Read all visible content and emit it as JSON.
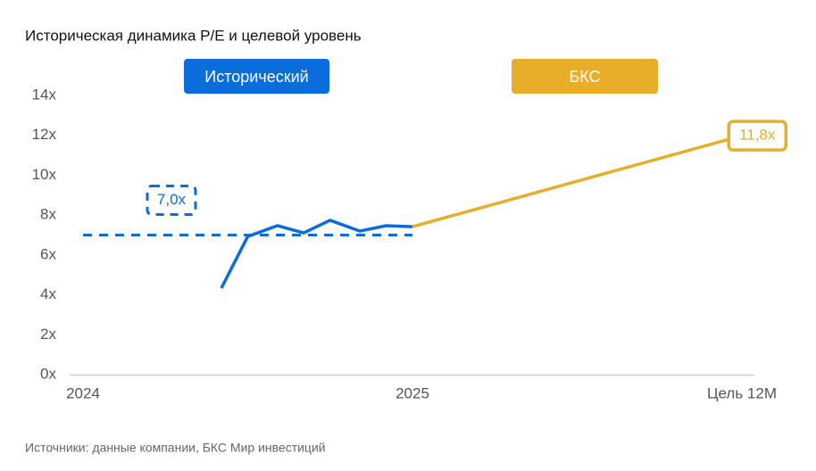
{
  "chart_data": {
    "type": "line",
    "title": "Историческая динамика P/E и целевой уровень",
    "source": "Источники: данные компании, БКС Мир инвестиций",
    "xlim": [
      2024,
      2026
    ],
    "xticks": [
      {
        "value": 2024,
        "label": "2024"
      },
      {
        "value": 2025,
        "label": "2025"
      },
      {
        "value": 2026,
        "label": "Цель 12M"
      }
    ],
    "ylim": [
      0,
      14
    ],
    "yticks": [
      {
        "value": 0,
        "label": "0x"
      },
      {
        "value": 2,
        "label": "2x"
      },
      {
        "value": 4,
        "label": "4x"
      },
      {
        "value": 6,
        "label": "6x"
      },
      {
        "value": 8,
        "label": "8x"
      },
      {
        "value": 10,
        "label": "10x"
      },
      {
        "value": 12,
        "label": "12x"
      },
      {
        "value": 14,
        "label": "14x"
      }
    ],
    "series": [
      {
        "name": "Исторический",
        "color": "#0b6cdb",
        "x": [
          2024.42,
          2024.5,
          2024.59,
          2024.67,
          2024.75,
          2024.84,
          2024.92,
          2025.0
        ],
        "values": [
          4.34,
          6.93,
          7.47,
          7.11,
          7.74,
          7.2,
          7.47,
          7.42
        ]
      },
      {
        "name": "БКС",
        "color": "#e8ae2a",
        "x": [
          2025.0,
          2025.96
        ],
        "values": [
          7.42,
          11.8
        ],
        "value_labels": [
          null,
          "11,8x"
        ]
      }
    ],
    "reference": {
      "value": 7,
      "value_label": "7,0x",
      "x": [
        2024,
        2025
      ],
      "color": "#0b6cdb"
    }
  }
}
